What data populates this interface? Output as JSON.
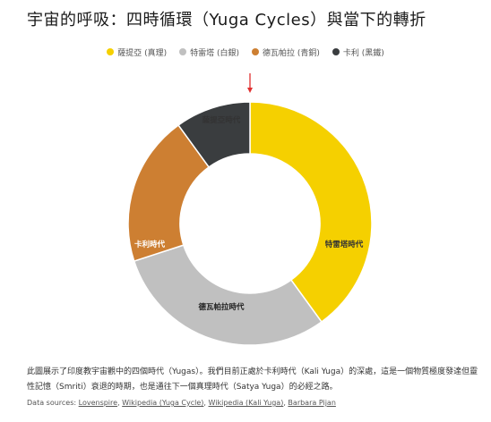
{
  "title": "宇宙的呼吸：四時循環（Yuga Cycles）與當下的轉折",
  "legend": [
    {
      "label": "薩提亞 (真理)",
      "color": "#f5d000"
    },
    {
      "label": "特雷塔 (白銀)",
      "color": "#c0c0c0"
    },
    {
      "label": "德瓦帕拉 (青銅)",
      "color": "#cd7f32"
    },
    {
      "label": "卡利 (黑鐵)",
      "color": "#3a3d3f"
    }
  ],
  "chart_data": {
    "type": "pie",
    "variant": "donut",
    "categories": [
      "薩提亞時代",
      "特雷塔時代",
      "德瓦帕拉時代",
      "卡利時代"
    ],
    "values": [
      4,
      3,
      2,
      1
    ],
    "colors": [
      "#f5d000",
      "#c0c0c0",
      "#cd7f32",
      "#3a3d3f"
    ],
    "start": "top, clockwise",
    "marker": "red arrow at top"
  },
  "note": "此圖展示了印度教宇宙觀中的四個時代（Yugas）。我們目前正處於卡利時代（Kali Yuga）的深處，這是一個物質極度發達但靈性記憶（Smriti）衰退的時期，也是通往下一個真理時代（Satya Yuga）的必經之路。",
  "sources": {
    "prefix": "Data sources: ",
    "links": [
      "Lovenspire",
      "Wikipedia (Yuga Cycle)",
      "Wikipedia (Kali Yuga)",
      "Barbara Pijan"
    ]
  }
}
